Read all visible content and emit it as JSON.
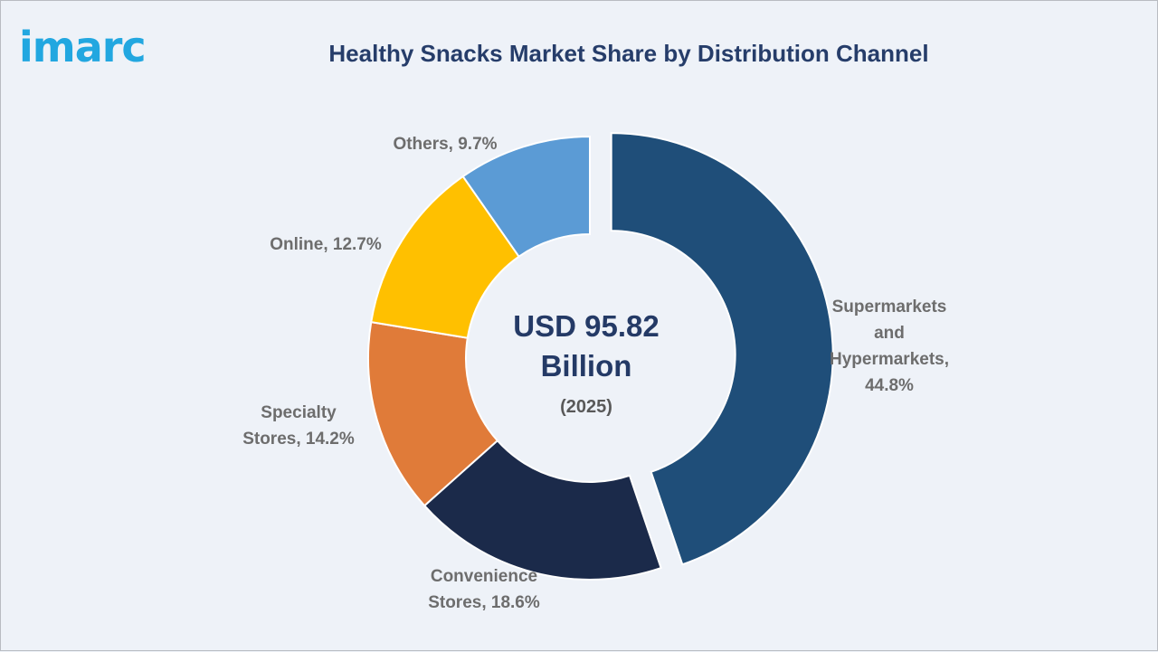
{
  "logo": {
    "text": "imarc"
  },
  "chart_data": {
    "type": "pie",
    "title": "Healthy Snacks Market Share by Distribution Channel",
    "center_label": {
      "value_line1": "USD 95.82",
      "value_line2": "Billion",
      "year": "(2025)"
    },
    "slices": [
      {
        "name": "Supermarkets and Hypermarkets",
        "value": 44.8,
        "color": "#1f4e79",
        "label_lines": [
          "Supermarkets",
          "and",
          "Hypermarkets,",
          "44.8%"
        ]
      },
      {
        "name": "Convenience Stores",
        "value": 18.6,
        "color": "#1b2a4a",
        "label_lines": [
          "Convenience",
          "Stores, 18.6%"
        ]
      },
      {
        "name": "Specialty Stores",
        "value": 14.2,
        "color": "#e07b39",
        "label_lines": [
          "Specialty",
          "Stores, 14.2%"
        ]
      },
      {
        "name": "Online",
        "value": 12.7,
        "color": "#ffc000",
        "label_lines": [
          "Online, 12.7%"
        ]
      },
      {
        "name": "Others",
        "value": 9.7,
        "color": "#5b9bd5",
        "label_lines": [
          "Others, 9.7%"
        ]
      }
    ]
  }
}
